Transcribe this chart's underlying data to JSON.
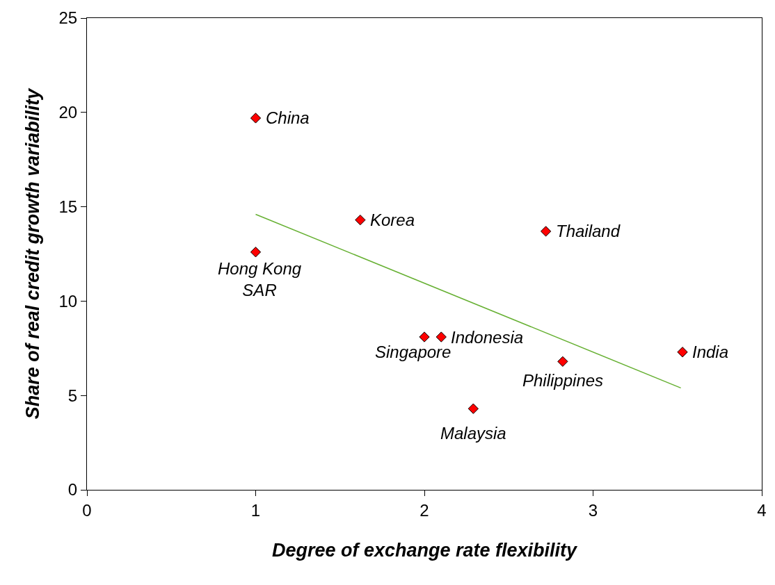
{
  "chart_data": {
    "type": "scatter",
    "xlabel": "Degree of exchange rate flexibility",
    "ylabel": "Share of real credit growth variability",
    "xlim": [
      0,
      4
    ],
    "xticks": [
      0,
      1,
      2,
      3,
      4
    ],
    "ylim": [
      0,
      25
    ],
    "yticks": [
      0,
      5,
      10,
      15,
      20,
      25
    ],
    "grid": false,
    "marker": "diamond",
    "series": [
      {
        "color": "#ff0000",
        "x": [
          1.0,
          1.0,
          1.62,
          2.72,
          2.0,
          2.1,
          2.29,
          2.82,
          3.53
        ],
        "values": [
          19.7,
          12.6,
          14.3,
          13.7,
          8.1,
          8.1,
          4.3,
          6.8,
          7.3
        ]
      },
      {
        "type": "line",
        "color": "#66b032",
        "x": [
          1.0,
          3.52
        ],
        "values": [
          14.6,
          5.4
        ],
        "marker": "none"
      }
    ],
    "annotations": [
      {
        "text": "China",
        "x": 1.0,
        "y": 19.7
      },
      {
        "text": "Hong Kong\nSAR",
        "x": 1.0,
        "y": 12.6
      },
      {
        "text": "Korea",
        "x": 1.62,
        "y": 14.3
      },
      {
        "text": "Thailand",
        "x": 2.72,
        "y": 13.7
      },
      {
        "text": "Singapore",
        "x": 2.0,
        "y": 8.1
      },
      {
        "text": "Indonesia",
        "x": 2.1,
        "y": 8.1
      },
      {
        "text": "Malaysia",
        "x": 2.29,
        "y": 4.3
      },
      {
        "text": "Philippines",
        "x": 2.82,
        "y": 6.8
      },
      {
        "text": "India",
        "x": 3.53,
        "y": 7.3
      }
    ]
  }
}
